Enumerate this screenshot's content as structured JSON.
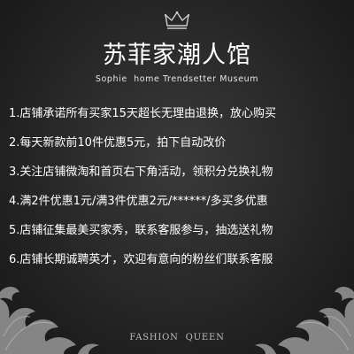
{
  "brand": {
    "title": "苏菲家潮人馆",
    "subtitle": "Sophie  home Trendsetter Museum",
    "icon": "crown-icon"
  },
  "items": [
    "1.店铺承诺所有买家15天超长无理由退换，放心购买",
    "2.每天新款前10件优惠5元，拍下自动改价",
    "3.关注店铺微淘和首页右下角活动，领积分兑换礼物",
    "4.满2件优惠1元/满3件优惠2元/******/多买多优惠",
    "5.店铺征集最美买家秀，联系客服参与，抽选送礼物",
    "6.店铺长期诚聘英才，欢迎有意向的粉丝们联系客服"
  ],
  "footer": {
    "text": "FASHION  QUEEN"
  },
  "colors": {
    "background": "#2a2a2a",
    "text": "#ffffff",
    "ornament": "#a9a9a9"
  }
}
